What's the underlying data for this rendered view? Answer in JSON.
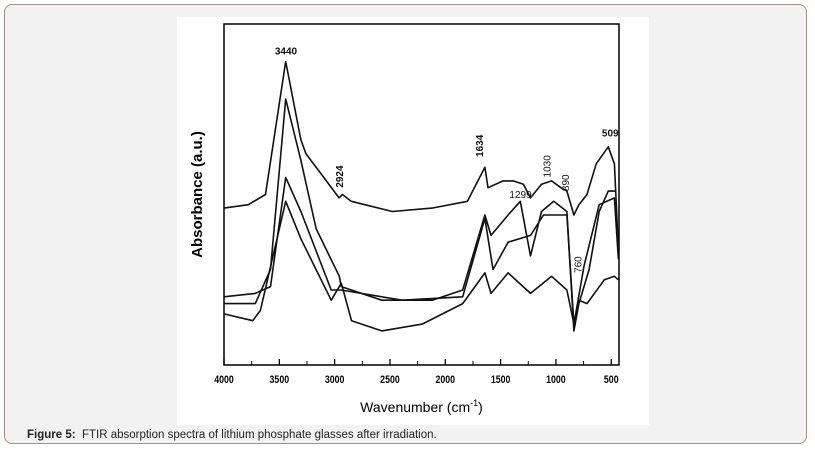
{
  "caption": {
    "label": "Figure 5:",
    "text": "FTIR absorption spectra of lithium phosphate glasses after irradiation."
  },
  "chart_data": {
    "type": "line",
    "title": "",
    "xlabel": "Wavenumber (cm",
    "xlabel_sup": "-1",
    "xlabel_end": ")",
    "ylabel": "Absorbance (a.u.)",
    "xlim": [
      4000,
      430
    ],
    "ylim": [
      0,
      1
    ],
    "x_reversed": true,
    "xticks": [
      4000,
      3500,
      3000,
      2500,
      2000,
      1500,
      1000,
      500
    ],
    "xtick_labels": [
      "4000",
      "3500",
      "3000",
      "2500",
      "2000",
      "1500",
      "1000",
      "500"
    ],
    "grid": false,
    "line_color": "#111111",
    "series": [
      {
        "points": [
          [
            4000,
            0.46
          ],
          [
            3780,
            0.47
          ],
          [
            3625,
            0.5
          ],
          [
            3442,
            0.89
          ],
          [
            3305,
            0.66
          ],
          [
            3260,
            0.62
          ],
          [
            2960,
            0.49
          ],
          [
            2930,
            0.5
          ],
          [
            2850,
            0.48
          ],
          [
            2480,
            0.45
          ],
          [
            2120,
            0.46
          ],
          [
            1800,
            0.48
          ],
          [
            1642,
            0.58
          ],
          [
            1614,
            0.52
          ],
          [
            1477,
            0.54
          ],
          [
            1386,
            0.54
          ],
          [
            1294,
            0.53
          ],
          [
            1230,
            0.49
          ],
          [
            1130,
            0.53
          ],
          [
            1039,
            0.54
          ],
          [
            956,
            0.52
          ],
          [
            901,
            0.51
          ],
          [
            838,
            0.44
          ],
          [
            792,
            0.47
          ],
          [
            719,
            0.5
          ],
          [
            636,
            0.59
          ],
          [
            527,
            0.64
          ],
          [
            472,
            0.59
          ],
          [
            435,
            0.34
          ]
        ]
      },
      {
        "points": [
          [
            4000,
            0.18
          ],
          [
            3717,
            0.18
          ],
          [
            3580,
            0.28
          ],
          [
            3442,
            0.78
          ],
          [
            3305,
            0.6
          ],
          [
            3168,
            0.4
          ],
          [
            2958,
            0.26
          ],
          [
            2940,
            0.23
          ],
          [
            2574,
            0.19
          ],
          [
            2117,
            0.19
          ],
          [
            1843,
            0.22
          ],
          [
            1642,
            0.44
          ],
          [
            1587,
            0.38
          ],
          [
            1432,
            0.44
          ],
          [
            1322,
            0.48
          ],
          [
            1230,
            0.32
          ],
          [
            1130,
            0.45
          ],
          [
            1020,
            0.48
          ],
          [
            901,
            0.45
          ],
          [
            838,
            0.1
          ],
          [
            792,
            0.18
          ],
          [
            700,
            0.28
          ],
          [
            609,
            0.45
          ],
          [
            527,
            0.51
          ],
          [
            454,
            0.51
          ]
        ]
      },
      {
        "points": [
          [
            4000,
            0.2
          ],
          [
            3717,
            0.21
          ],
          [
            3580,
            0.23
          ],
          [
            3442,
            0.55
          ],
          [
            3305,
            0.45
          ],
          [
            3031,
            0.22
          ],
          [
            2940,
            0.22
          ],
          [
            2391,
            0.19
          ],
          [
            1843,
            0.2
          ],
          [
            1642,
            0.43
          ],
          [
            1569,
            0.28
          ],
          [
            1432,
            0.36
          ],
          [
            1230,
            0.38
          ],
          [
            1112,
            0.44
          ],
          [
            1020,
            0.44
          ],
          [
            901,
            0.44
          ],
          [
            838,
            0.12
          ],
          [
            746,
            0.29
          ],
          [
            609,
            0.47
          ],
          [
            472,
            0.49
          ],
          [
            435,
            0.31
          ]
        ]
      },
      {
        "points": [
          [
            4000,
            0.15
          ],
          [
            3740,
            0.13
          ],
          [
            3671,
            0.16
          ],
          [
            3442,
            0.48
          ],
          [
            3305,
            0.37
          ],
          [
            3031,
            0.19
          ],
          [
            2940,
            0.24
          ],
          [
            2848,
            0.13
          ],
          [
            2574,
            0.1
          ],
          [
            2209,
            0.12
          ],
          [
            1843,
            0.18
          ],
          [
            1642,
            0.27
          ],
          [
            1587,
            0.21
          ],
          [
            1432,
            0.27
          ],
          [
            1230,
            0.21
          ],
          [
            1039,
            0.26
          ],
          [
            901,
            0.22
          ],
          [
            838,
            0.12
          ],
          [
            792,
            0.19
          ],
          [
            719,
            0.18
          ],
          [
            563,
            0.25
          ],
          [
            472,
            0.26
          ],
          [
            435,
            0.25
          ]
        ]
      }
    ],
    "annotations": [
      {
        "text": "3440",
        "x": 3440,
        "y": 0.91,
        "rotated": false,
        "bold": true
      },
      {
        "text": "2924",
        "x": 2924,
        "y": 0.52,
        "rotated": true,
        "bold": true
      },
      {
        "text": "1634",
        "x": 1660,
        "y": 0.61,
        "rotated": true,
        "bold": true
      },
      {
        "text": "1299",
        "x": 1320,
        "y": 0.49,
        "rotated": false,
        "bold": false
      },
      {
        "text": "1030",
        "x": 1050,
        "y": 0.55,
        "rotated": true,
        "bold": false
      },
      {
        "text": "890",
        "x": 880,
        "y": 0.51,
        "rotated": true,
        "bold": false
      },
      {
        "text": "760",
        "x": 770,
        "y": 0.27,
        "rotated": true,
        "bold": false
      },
      {
        "text": "509",
        "x": 509,
        "y": 0.67,
        "rotated": false,
        "bold": true
      }
    ]
  }
}
